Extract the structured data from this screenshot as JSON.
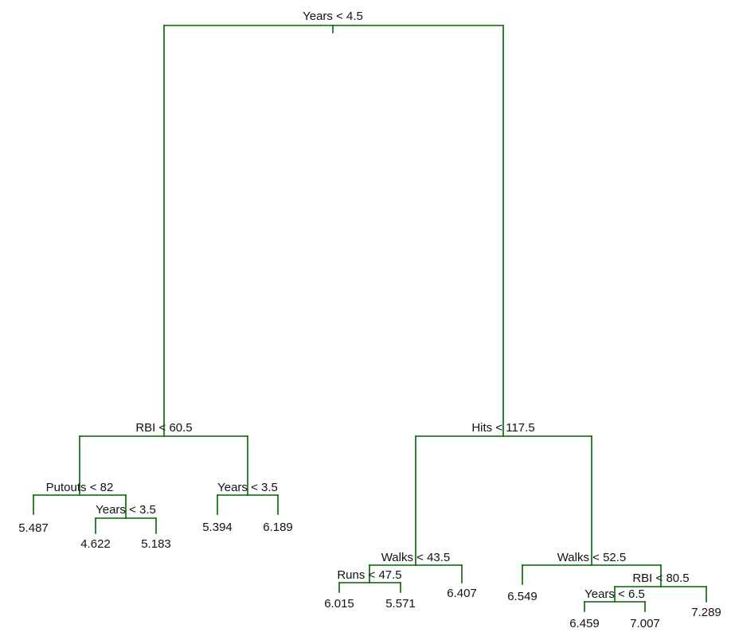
{
  "tree": {
    "root": {
      "label": "Years < 4.5",
      "left": {
        "label": "RBI < 60.5",
        "left": {
          "label": "Putouts < 82",
          "left": {
            "value": "5.487"
          },
          "right": {
            "label": "Years < 3.5",
            "left": {
              "value": "4.622"
            },
            "right": {
              "value": "5.183"
            }
          }
        },
        "right": {
          "label": "Years < 3.5",
          "left": {
            "value": "5.394"
          },
          "right": {
            "value": "6.189"
          }
        }
      },
      "right": {
        "label": "Hits < 117.5",
        "left": {
          "label": "Walks < 43.5",
          "left": {
            "label": "Runs < 47.5",
            "left": {
              "value": "6.015"
            },
            "right": {
              "value": "5.571"
            }
          },
          "right": {
            "value": "6.407"
          }
        },
        "right": {
          "label": "Walks < 52.5",
          "left": {
            "value": "6.549"
          },
          "right": {
            "label": "RBI < 80.5",
            "left": {
              "label": "Years < 6.5",
              "left": {
                "value": "6.459"
              },
              "right": {
                "value": "7.007"
              }
            },
            "right": {
              "value": "7.289"
            }
          }
        }
      }
    },
    "colors": {
      "branch": "#006400",
      "text": "#111111"
    }
  }
}
